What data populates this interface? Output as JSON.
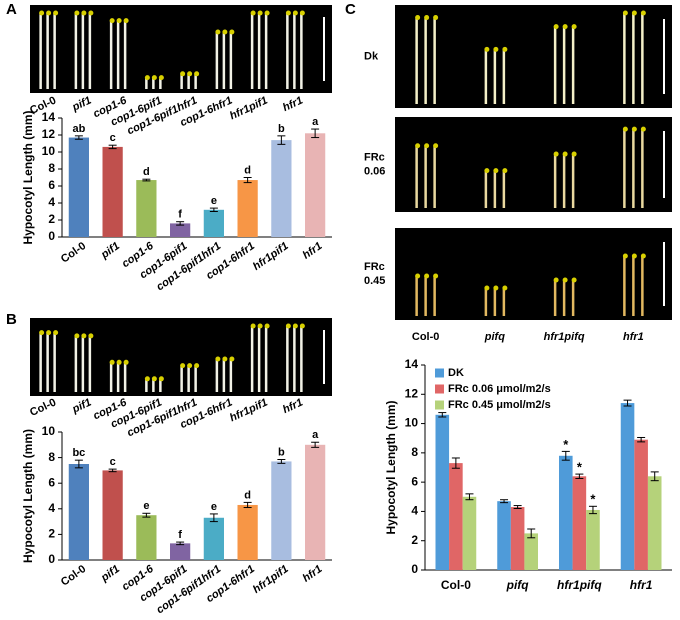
{
  "chart_data": [
    {
      "type": "bar",
      "panel": "A",
      "ylabel": "Hypocotyl Length (mm)",
      "categories": [
        "Col-0",
        "pif1",
        "cop1-6",
        "cop1-6pif1",
        "cop1-6pif1hfr1",
        "cop1-6hfr1",
        "hfr1pif1",
        "hfr1"
      ],
      "values": [
        11.7,
        10.6,
        6.7,
        1.6,
        3.2,
        6.7,
        11.4,
        12.2
      ],
      "errors": [
        0.2,
        0.2,
        0.1,
        0.2,
        0.2,
        0.3,
        0.5,
        0.5
      ],
      "letters": [
        "ab",
        "c",
        "d",
        "f",
        "e",
        "d",
        "b",
        "a"
      ],
      "colors": [
        "#4f81bd",
        "#c0504d",
        "#9bbb59",
        "#8064a2",
        "#4bacc6",
        "#f79646",
        "#a8bde0",
        "#e8b4b4"
      ],
      "ylim": [
        0,
        14
      ],
      "yticks": [
        0,
        2,
        4,
        6,
        8,
        10,
        12,
        14
      ]
    },
    {
      "type": "bar",
      "panel": "B",
      "ylabel": "Hypocotyl Length (mm)",
      "categories": [
        "Col-0",
        "pif1",
        "cop1-6",
        "cop1-6pif1",
        "cop1-6pif1hfr1",
        "cop1-6hfr1",
        "hfr1pif1",
        "hfr1"
      ],
      "values": [
        7.5,
        7.0,
        3.5,
        1.3,
        3.3,
        4.3,
        7.7,
        9.0
      ],
      "errors": [
        0.3,
        0.1,
        0.15,
        0.1,
        0.3,
        0.2,
        0.15,
        0.2
      ],
      "letters": [
        "bc",
        "c",
        "e",
        "f",
        "e",
        "d",
        "b",
        "a"
      ],
      "colors": [
        "#4f81bd",
        "#c0504d",
        "#9bbb59",
        "#8064a2",
        "#4bacc6",
        "#f79646",
        "#a8bde0",
        "#e8b4b4"
      ],
      "ylim": [
        0,
        10
      ],
      "yticks": [
        0,
        2,
        4,
        6,
        8,
        10
      ]
    },
    {
      "type": "grouped-bar",
      "panel": "C",
      "ylabel": "Hypocotyl Length (mm)",
      "photo_rows": [
        [
          "Dk"
        ],
        [
          "FRc",
          "0.06"
        ],
        [
          "FRc",
          "0.45"
        ]
      ],
      "categories": [
        "Col-0",
        "pifq",
        "hfr1pifq",
        "hfr1"
      ],
      "series": [
        {
          "name": "DK",
          "color": "#4f9bd9",
          "values": [
            10.6,
            4.7,
            7.8,
            11.4
          ],
          "errors": [
            0.15,
            0.1,
            0.3,
            0.2
          ],
          "marks": [
            null,
            null,
            "*",
            null
          ]
        },
        {
          "name": "FRc 0.06 μmol/m2/s",
          "color": "#e06666",
          "values": [
            7.3,
            4.3,
            6.4,
            8.9
          ],
          "errors": [
            0.35,
            0.1,
            0.15,
            0.15
          ],
          "marks": [
            null,
            null,
            "*",
            null
          ]
        },
        {
          "name": "FRc 0.45 μmol/m2/s",
          "color": "#b5d27a",
          "values": [
            5.0,
            2.5,
            4.1,
            6.4
          ],
          "errors": [
            0.2,
            0.3,
            0.25,
            0.3
          ],
          "marks": [
            null,
            null,
            "*",
            null
          ]
        }
      ],
      "ylim": [
        0,
        14
      ],
      "yticks": [
        0,
        2,
        4,
        6,
        8,
        10,
        12,
        14
      ]
    }
  ]
}
